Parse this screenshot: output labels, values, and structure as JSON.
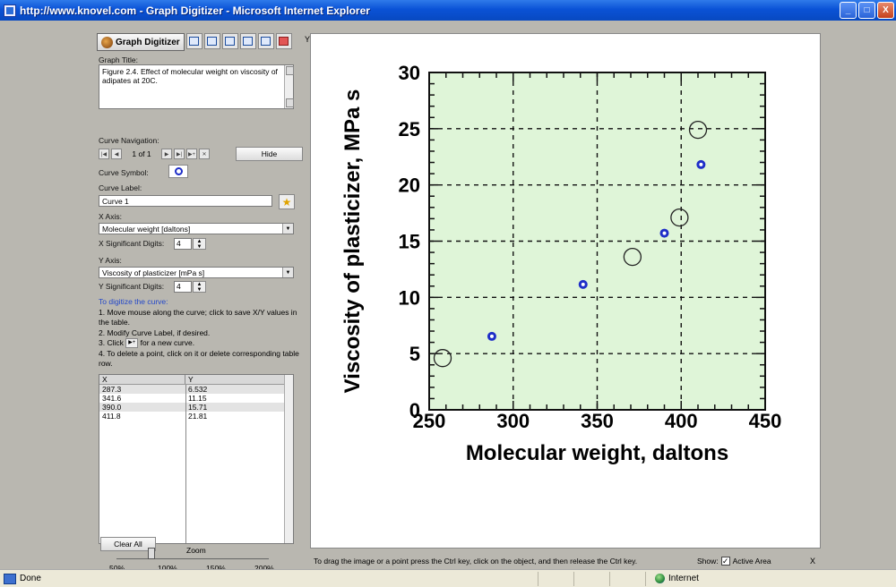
{
  "window": {
    "title": "http://www.knovel.com - Graph Digitizer - Microsoft Internet Explorer",
    "min_label": "_",
    "max_label": "□",
    "close_label": "X"
  },
  "toolbar": {
    "app_label": "Graph Digitizer",
    "y_mark": "Y"
  },
  "panel": {
    "graph_title_label": "Graph Title:",
    "graph_title_value": "Figure 2.4. Effect of molecular weight on viscosity of adipates at 20C.",
    "curve_nav_label": "Curve Navigation:",
    "curve_count": "1 of 1",
    "hide_label": "Hide",
    "curve_symbol_label": "Curve Symbol:",
    "curve_label_label": "Curve Label:",
    "curve_label_value": "Curve 1",
    "x_axis_label": "X Axis:",
    "x_axis_value": "Molecular weight [daltons]",
    "x_sig_label": "X Significant Digits:",
    "x_sig_value": "4",
    "y_axis_label": "Y Axis:",
    "y_axis_value": "Viscosity of plasticizer [mPa s]",
    "y_sig_label": "Y Significant Digits:",
    "y_sig_value": "4",
    "instructions": {
      "head": "To digitize the curve:",
      "step1": "1. Move mouse along the curve; click to save X/Y values in the table.",
      "step2": "2. Modify Curve Label, if desired.",
      "step3a": "3. Click",
      "step3b": "for a new curve.",
      "step4": "4. To delete a point, click on it or delete corresponding table row."
    },
    "table": {
      "headers": [
        "X",
        "Y"
      ],
      "rows": [
        [
          "287.3",
          "6.532"
        ],
        [
          "341.6",
          "11.15"
        ],
        [
          "390.0",
          "15.71"
        ],
        [
          "411.8",
          "21.81"
        ]
      ]
    },
    "clear_all_label": "Clear All",
    "zoom_label": "Zoom",
    "zoom_ticks": [
      "50%",
      "100%",
      "150%",
      "200%"
    ],
    "zoom_level": "100%"
  },
  "footer": {
    "note": "To drag the image or a point press the Ctrl key, click on the object, and then release the Ctrl key.",
    "show_label": "Show:",
    "active_area_label": "Active Area",
    "close_x": "X"
  },
  "status": {
    "done": "Done",
    "zone": "Internet"
  },
  "colors": {
    "plot_bg": "#dff5d8",
    "digitized_marker": "#1e2ec8",
    "title_bar": "#0a52d6"
  },
  "chart_data": {
    "type": "scatter",
    "xlabel": "Molecular weight, daltons",
    "ylabel": "Viscosity of plasticizer, MPa s",
    "xlim": [
      250,
      450
    ],
    "ylim": [
      0,
      30
    ],
    "x_ticks": [
      "250",
      "300",
      "350",
      "400",
      "450"
    ],
    "y_ticks": [
      "0",
      "5",
      "10",
      "15",
      "20",
      "25",
      "30"
    ],
    "grid": true,
    "series": [
      {
        "marker": "open-circle",
        "points": [
          [
            258,
            4.6
          ],
          [
            371,
            13.6
          ],
          [
            399,
            17.1
          ],
          [
            410,
            24.9
          ]
        ]
      },
      {
        "marker": "digitized-point",
        "points": [
          [
            287.3,
            6.532
          ],
          [
            341.6,
            11.15
          ],
          [
            390.0,
            15.71
          ],
          [
            411.8,
            21.81
          ]
        ]
      }
    ]
  }
}
